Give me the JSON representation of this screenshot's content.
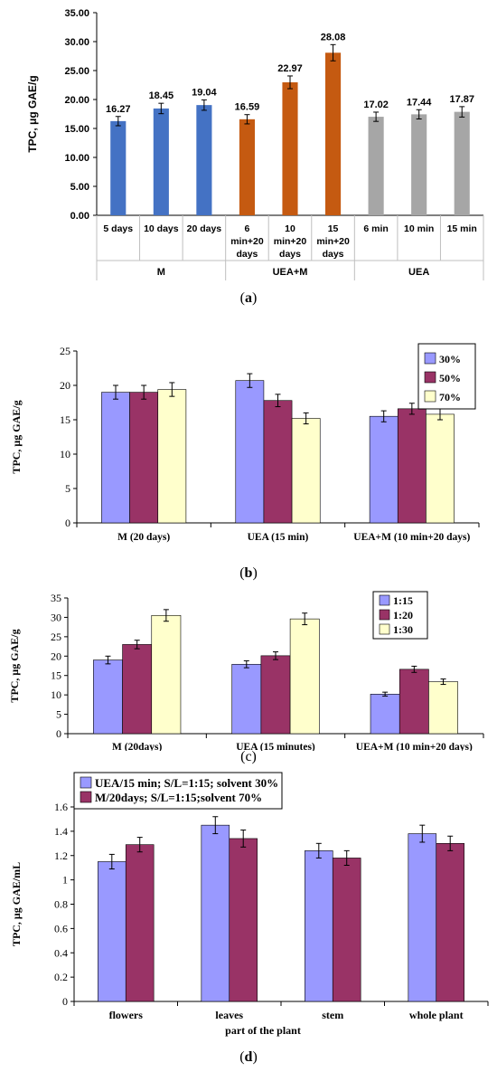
{
  "chart_data": [
    {
      "type": "bar",
      "ylabel": "TPC, μg GAE/g",
      "ylim": [
        0,
        35
      ],
      "yticks": [
        "0.00",
        "5.00",
        "10.00",
        "15.00",
        "20.00",
        "25.00",
        "30.00",
        "35.00"
      ],
      "grid": false,
      "data_labels": true,
      "categories": [
        "5 days",
        "10 days",
        "20 days",
        "6 min+20 days",
        "10 min+20 days",
        "15 min+20 days",
        "6 min",
        "10 min",
        "15 min"
      ],
      "category_lines": [
        [
          "5 days"
        ],
        [
          "10 days"
        ],
        [
          "20 days"
        ],
        [
          "6",
          "min+20",
          "days"
        ],
        [
          "10",
          "min+20",
          "days"
        ],
        [
          "15",
          "min+20",
          "days"
        ],
        [
          "6 min"
        ],
        [
          "10 min"
        ],
        [
          "15 min"
        ]
      ],
      "groups": [
        "M",
        "UEA+M",
        "UEA"
      ],
      "group_of": [
        0,
        0,
        0,
        1,
        1,
        1,
        2,
        2,
        2
      ],
      "values": [
        16.27,
        18.45,
        19.04,
        16.59,
        22.97,
        28.08,
        17.02,
        17.44,
        17.87
      ],
      "value_labels": [
        "16.27",
        "18.45",
        "19.04",
        "16.59",
        "22.97",
        "28.08",
        "17.02",
        "17.44",
        "17.87"
      ],
      "errors": [
        0.8,
        0.9,
        0.9,
        0.8,
        1.1,
        1.4,
        0.8,
        0.8,
        0.9
      ],
      "colors": [
        "#4472C4",
        "#4472C4",
        "#4472C4",
        "#C55A11",
        "#C55A11",
        "#C55A11",
        "#A6A6A6",
        "#A6A6A6",
        "#A6A6A6"
      ],
      "caption_letter": "a"
    },
    {
      "type": "bar",
      "ylabel": "TPC, μg GAE/g",
      "ylim": [
        0,
        25
      ],
      "yticks": [
        "0",
        "5",
        "10",
        "15",
        "20",
        "25"
      ],
      "grid": false,
      "legend_position": "top-right",
      "categories": [
        "M (20 days)",
        "UEA (15 min)",
        "UEA+M (10 min+20 days)"
      ],
      "series": [
        {
          "name": "30%",
          "color": "#9999FF",
          "values": [
            19.0,
            20.7,
            15.5
          ],
          "errors": [
            1.0,
            1.0,
            0.8
          ]
        },
        {
          "name": "50%",
          "color": "#993366",
          "values": [
            19.0,
            17.8,
            16.6
          ],
          "errors": [
            1.0,
            0.9,
            0.8
          ]
        },
        {
          "name": "70%",
          "color": "#FFFFCC",
          "values": [
            19.4,
            15.2,
            15.8
          ],
          "errors": [
            1.0,
            0.8,
            0.8
          ]
        }
      ],
      "caption_letter": "b"
    },
    {
      "type": "bar",
      "ylabel": "TPC, μg GAE/g",
      "ylim": [
        0,
        35
      ],
      "yticks": [
        "0",
        "5",
        "10",
        "15",
        "20",
        "25",
        "30",
        "35"
      ],
      "grid": false,
      "legend_position": "top-right",
      "categories": [
        "M (20days)",
        "UEA (15 minutes)",
        "UEA+M (10 min+20 days)"
      ],
      "series": [
        {
          "name": "1:15",
          "color": "#9999FF",
          "values": [
            19.0,
            17.9,
            10.2
          ],
          "errors": [
            1.0,
            0.9,
            0.5
          ]
        },
        {
          "name": "1:20",
          "color": "#993366",
          "values": [
            23.0,
            20.1,
            16.6
          ],
          "errors": [
            1.1,
            1.0,
            0.8
          ]
        },
        {
          "name": "1:30",
          "color": "#FFFFCC",
          "values": [
            30.5,
            29.6,
            13.4
          ],
          "errors": [
            1.5,
            1.5,
            0.7
          ]
        }
      ],
      "caption_letter": "c"
    },
    {
      "type": "bar",
      "ylabel": "TPC, μg GAE/mL",
      "xlabel": "part of the plant",
      "ylim": [
        0,
        1.6
      ],
      "yticks": [
        "0",
        "0.2",
        "0.4",
        "0.6",
        "0.8",
        "1",
        "1.2",
        "1.4",
        "1.6"
      ],
      "grid": false,
      "legend_position": "top-left",
      "categories": [
        "flowers",
        "leaves",
        "stem",
        "whole plant"
      ],
      "series": [
        {
          "name": "UEA/15 min; S/L=1:15; solvent 30%",
          "color": "#9999FF",
          "values": [
            1.15,
            1.45,
            1.24,
            1.38
          ],
          "errors": [
            0.06,
            0.07,
            0.06,
            0.07
          ]
        },
        {
          "name": "M/20days; S/L=1:15;solvent 70%",
          "color": "#993366",
          "values": [
            1.29,
            1.34,
            1.18,
            1.3
          ],
          "errors": [
            0.06,
            0.07,
            0.06,
            0.06
          ]
        }
      ],
      "caption_letter": "d"
    }
  ]
}
